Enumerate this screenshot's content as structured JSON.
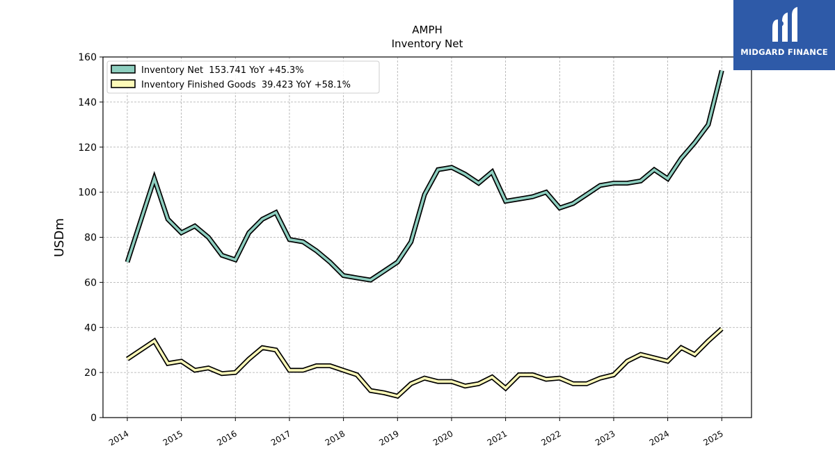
{
  "logo": {
    "text": "MIDGARD FINANCE",
    "bg_color": "#2e5aa8"
  },
  "chart_data": {
    "type": "line",
    "title": "AMPH",
    "subtitle": "Inventory Net",
    "ylabel": "USDm",
    "xlabel": "",
    "xlim": [
      2013.55,
      2025.55
    ],
    "ylim": [
      0,
      160
    ],
    "yticks": [
      0,
      20,
      40,
      60,
      80,
      100,
      120,
      140,
      160
    ],
    "xticks": [
      "2014",
      "2015",
      "2016",
      "2017",
      "2018",
      "2019",
      "2020",
      "2021",
      "2022",
      "2023",
      "2024",
      "2025"
    ],
    "grid": true,
    "legend_position": "top-left",
    "series": [
      {
        "name": "Inventory Net  153.741 YoY +45.3%",
        "color": "#8ecfc0",
        "x": [
          2014.0,
          2014.5,
          2014.75,
          2015.0,
          2015.25,
          2015.5,
          2015.75,
          2016.0,
          2016.25,
          2016.5,
          2016.75,
          2017.0,
          2017.25,
          2017.5,
          2017.75,
          2018.0,
          2018.25,
          2018.5,
          2018.75,
          2019.0,
          2019.25,
          2019.5,
          2019.75,
          2020.0,
          2020.25,
          2020.5,
          2020.75,
          2021.0,
          2021.25,
          2021.5,
          2021.75,
          2022.0,
          2022.25,
          2022.5,
          2022.75,
          2023.0,
          2023.25,
          2023.5,
          2023.75,
          2024.0,
          2024.25,
          2024.5,
          2024.75,
          2025.0
        ],
        "values": [
          69,
          106,
          88,
          82,
          85,
          80,
          72,
          70,
          82,
          88,
          91,
          79,
          78,
          74,
          69,
          63,
          62,
          61,
          65,
          69,
          78,
          99,
          110,
          111,
          108,
          104,
          109,
          96,
          97,
          98,
          100,
          93,
          95,
          99,
          103,
          104,
          104,
          105,
          110,
          106,
          115,
          122,
          130,
          154
        ]
      },
      {
        "name": "Inventory Finished Goods  39.423 YoY +58.1%",
        "color": "#fdfab9",
        "x": [
          2014.0,
          2014.5,
          2014.75,
          2015.0,
          2015.25,
          2015.5,
          2015.75,
          2016.0,
          2016.25,
          2016.5,
          2016.75,
          2017.0,
          2017.25,
          2017.5,
          2017.75,
          2018.0,
          2018.25,
          2018.5,
          2018.75,
          2019.0,
          2019.25,
          2019.5,
          2019.75,
          2020.0,
          2020.25,
          2020.5,
          2020.75,
          2021.0,
          2021.25,
          2021.5,
          2021.75,
          2022.0,
          2022.25,
          2022.5,
          2022.75,
          2023.0,
          2023.25,
          2023.5,
          2023.75,
          2024.0,
          2024.25,
          2024.5,
          2024.75,
          2025.0
        ],
        "values": [
          26,
          34,
          24,
          25,
          21,
          22,
          19.5,
          20,
          26,
          31,
          30,
          21,
          21,
          23,
          23,
          21,
          19,
          12,
          11,
          9.5,
          15,
          17.5,
          16,
          16,
          14,
          15,
          18,
          13,
          19,
          19,
          17,
          17.5,
          15,
          15,
          17.5,
          19,
          25,
          28,
          26.5,
          25,
          31,
          28,
          34,
          39.4
        ]
      }
    ]
  }
}
